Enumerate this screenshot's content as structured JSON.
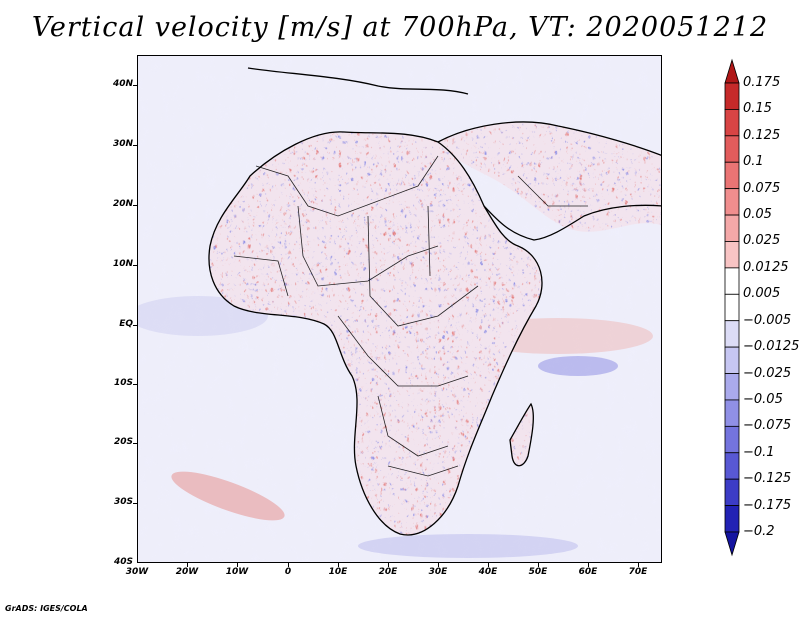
{
  "title": "Vertical velocity [m/s] at 700hPa, VT: 2020051212",
  "map": {
    "variable": "Vertical velocity",
    "units": "m/s",
    "level": "700hPa",
    "valid_time": "2020051212",
    "region": "Africa and Middle East",
    "lat_labels": [
      "40N",
      "30N",
      "20N",
      "10N",
      "EQ",
      "10S",
      "20S",
      "30S",
      "40S"
    ],
    "lon_labels": [
      "30W",
      "20W",
      "10W",
      "0",
      "10E",
      "20E",
      "30E",
      "40E",
      "50E",
      "60E",
      "70E"
    ]
  },
  "colorbar": {
    "labels": [
      "0.175",
      "0.15",
      "0.125",
      "0.1",
      "0.075",
      "0.05",
      "0.025",
      "0.0125",
      "0.005",
      "−0.005",
      "−0.0125",
      "−0.025",
      "−0.05",
      "−0.075",
      "−0.1",
      "−0.125",
      "−0.175",
      "−0.2"
    ],
    "colors": [
      "#b01818",
      "#c62a2a",
      "#d84444",
      "#e25c5c",
      "#ea7474",
      "#f08e8e",
      "#f4a8a8",
      "#f8c4c4",
      "#ffffff",
      "#ffffff",
      "#dcdcf6",
      "#c6c6f2",
      "#aaaaec",
      "#9090e6",
      "#7474de",
      "#5858d4",
      "#3c3cc6",
      "#2222b4",
      "#1414a0"
    ]
  },
  "footer": "GrADS: IGES/COLA"
}
